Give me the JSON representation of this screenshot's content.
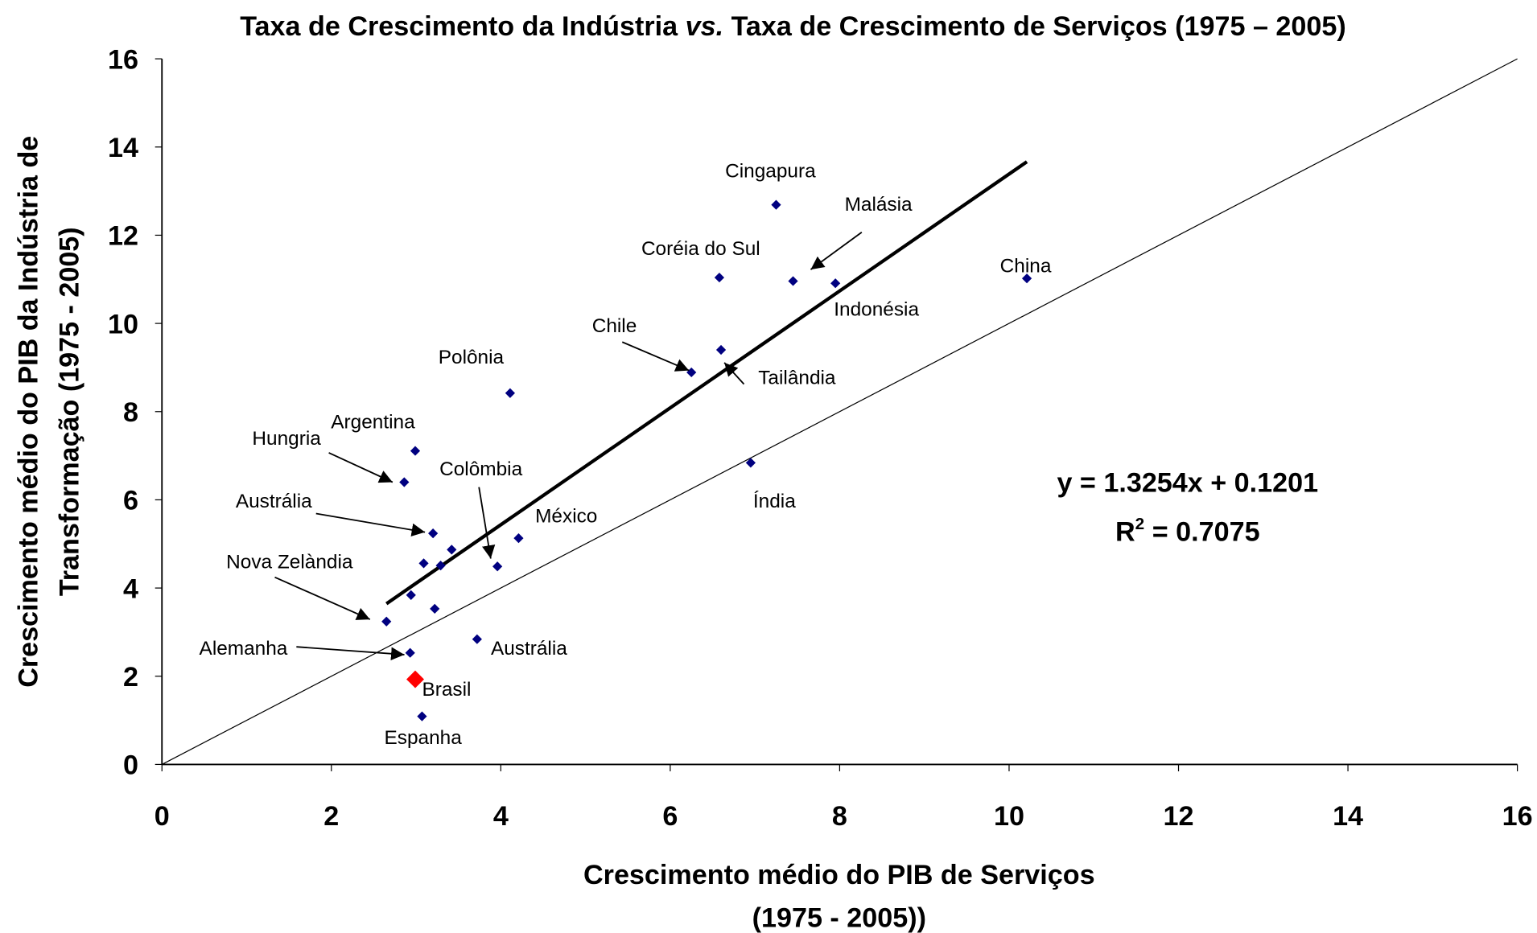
{
  "chart_data": {
    "type": "scatter",
    "title_parts": [
      "Taxa de Crescimento da Indústria ",
      "vs.",
      " Taxa de Crescimento de Serviços (1975 – 2005)"
    ],
    "x_label_lines": [
      "Crescimento médio do PIB de Serviços",
      "(1975 - 2005))"
    ],
    "y_label_lines": [
      "Crescimento médio do PIB da Indústria de",
      "Transformação (1975 - 2005)"
    ],
    "xlim": [
      0,
      16
    ],
    "ylim": [
      0,
      16
    ],
    "xticks": [
      0,
      2,
      4,
      6,
      8,
      10,
      12,
      14,
      16
    ],
    "yticks": [
      0,
      2,
      4,
      6,
      8,
      10,
      12,
      14,
      16
    ],
    "grid": false,
    "series": [
      {
        "color": "#000080",
        "x": [
          7.25,
          7.45,
          7.95,
          6.58,
          10.21,
          6.6,
          6.25,
          4.11,
          6.95,
          2.99,
          2.86,
          3.2,
          3.42,
          3.09,
          3.29,
          4.21,
          3.96,
          2.94,
          3.22,
          2.65,
          3.72,
          2.93,
          3.07
        ],
        "y": [
          12.69,
          10.96,
          10.91,
          11.04,
          11.02,
          9.4,
          8.89,
          8.42,
          6.84,
          7.11,
          6.4,
          5.24,
          4.87,
          4.56,
          4.51,
          5.13,
          4.49,
          3.84,
          3.53,
          3.24,
          2.84,
          2.53,
          1.09
        ]
      },
      {
        "color": "#ff0000",
        "x": [
          2.99
        ],
        "y": [
          1.93
        ]
      }
    ],
    "annotations": [
      "Cingapura",
      "Malásia",
      "Indonésia",
      "Coréia do Sul",
      "China",
      "Tailândia",
      "Chile",
      "Polônia",
      "Índia",
      "Argentina",
      "Hungria",
      "Austrália",
      "Colômbia",
      "México",
      "Nova Zelàndia",
      "Alemanha",
      "Austrália",
      "Brasil",
      "Espanha"
    ],
    "equation": "y = 1.3254x + 0.1201",
    "r_squared": {
      "prefix": "R",
      "sup": "2",
      "text": " = 0.7075"
    }
  }
}
